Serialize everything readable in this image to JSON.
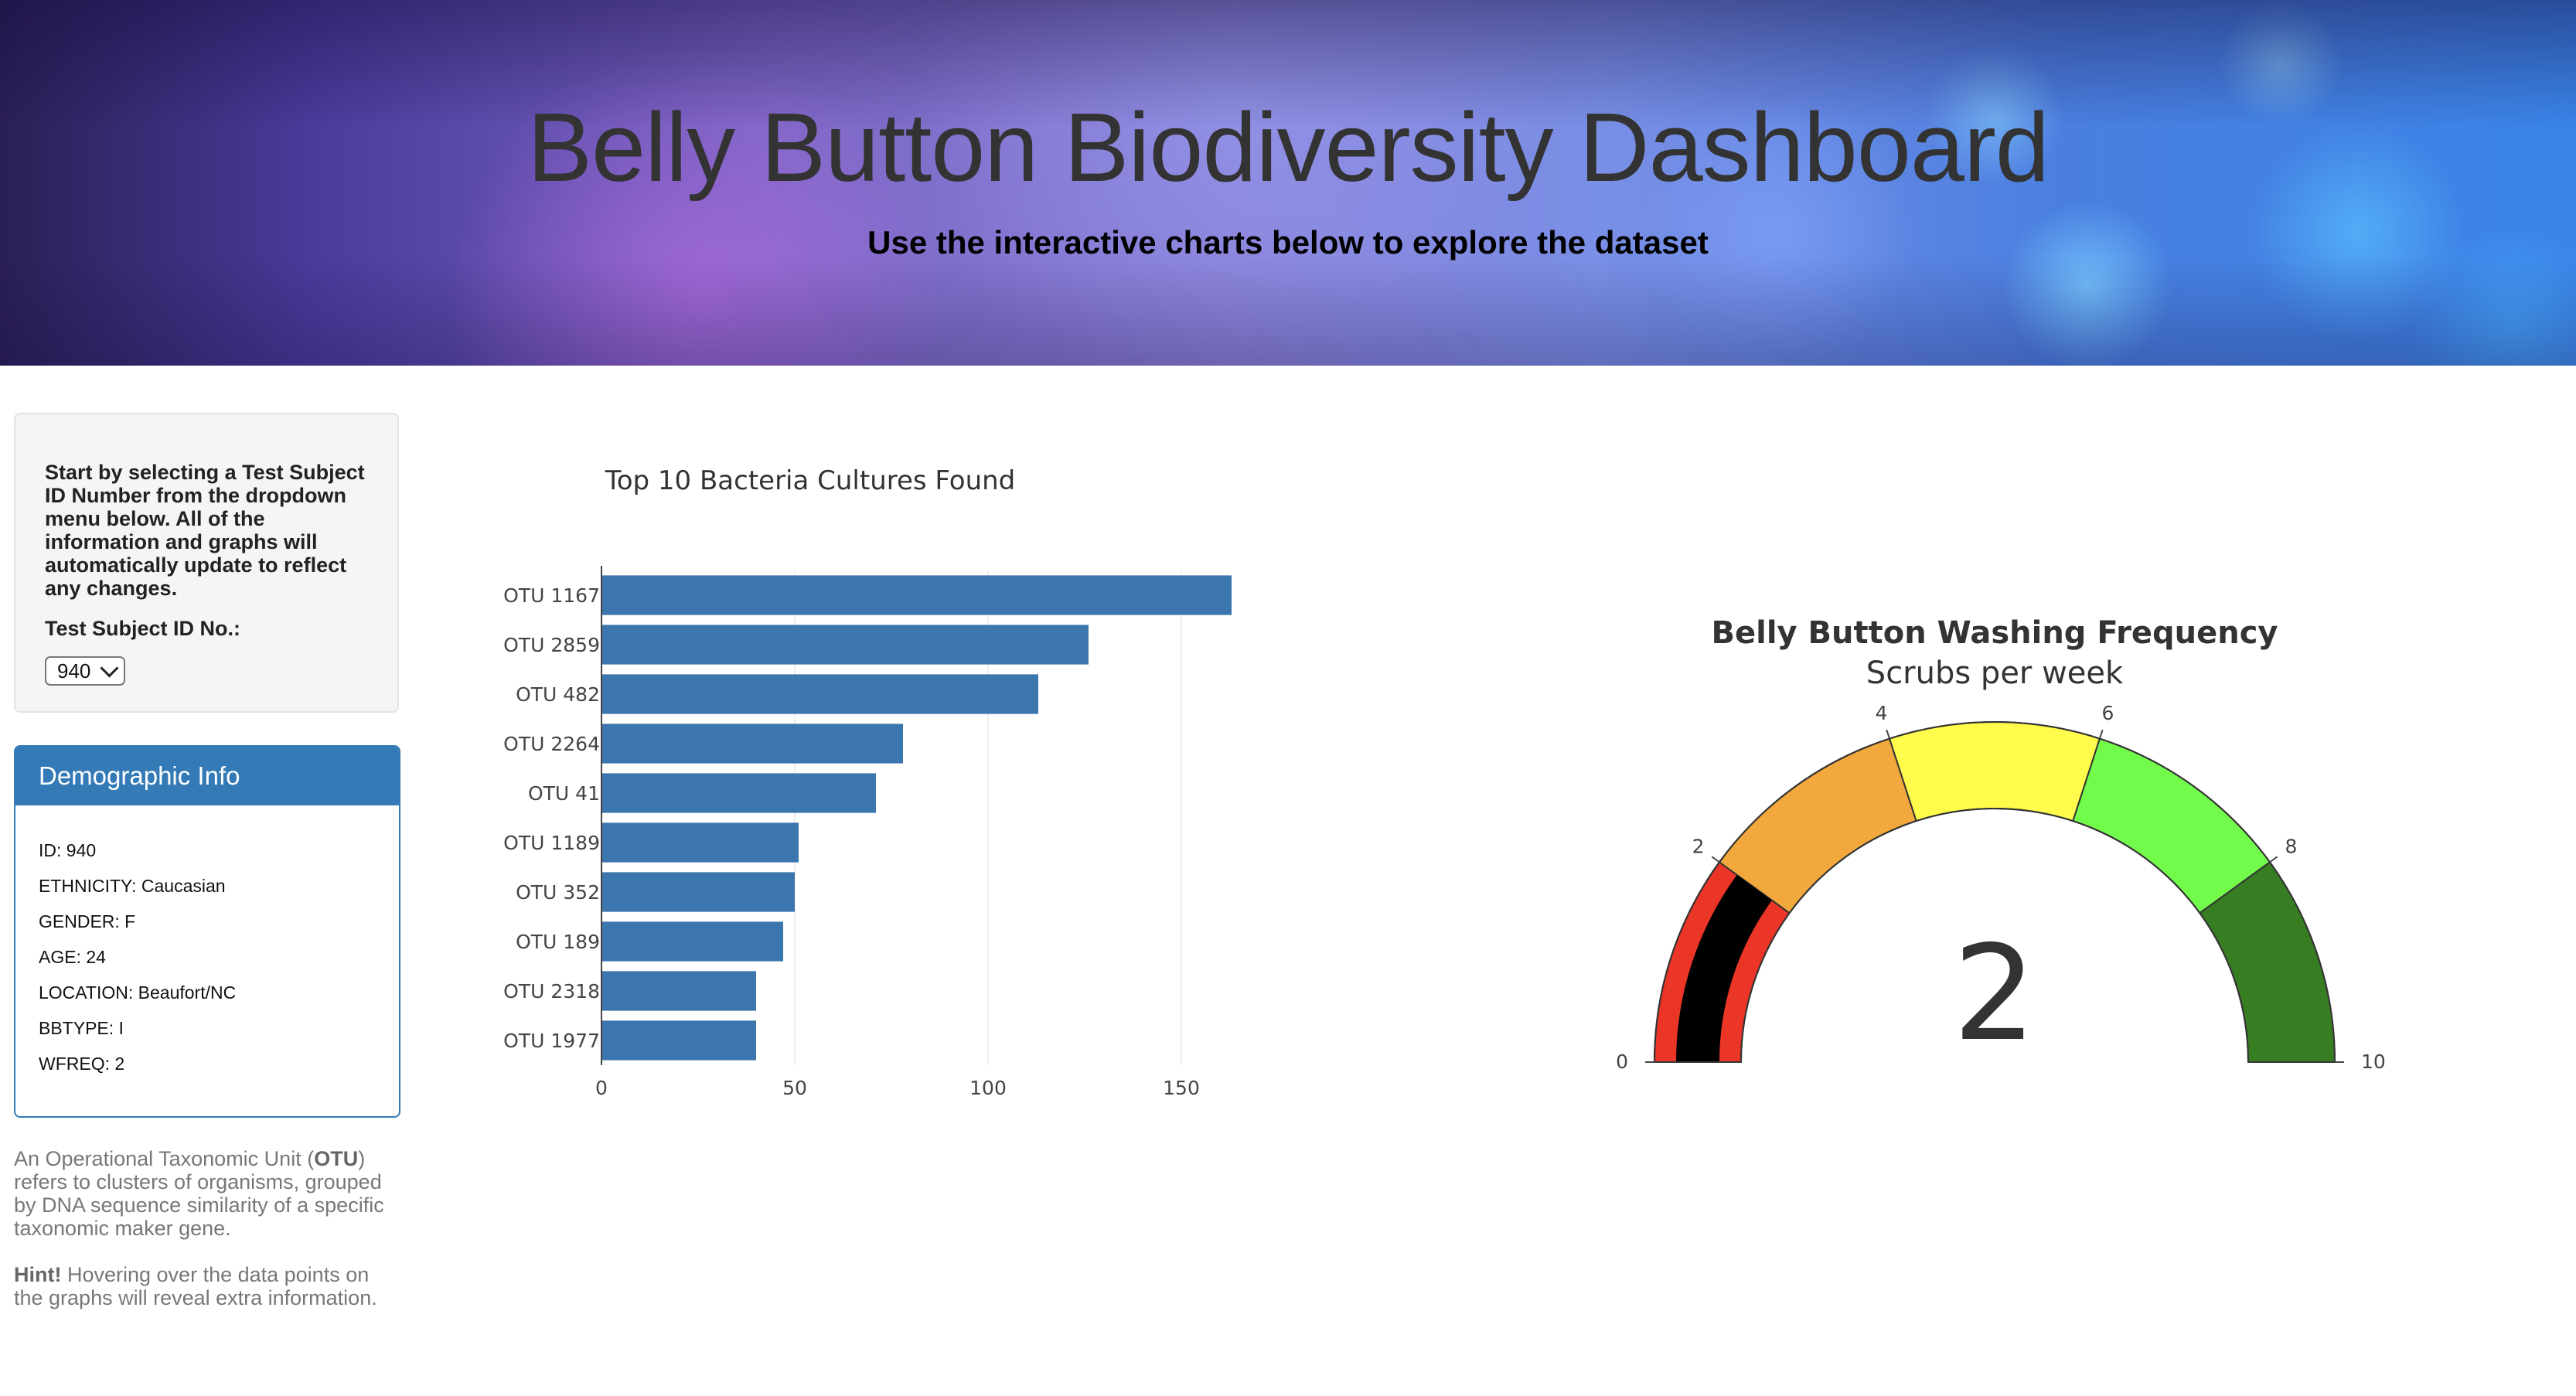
{
  "header": {
    "title": "Belly Button Biodiversity Dashboard",
    "subtitle": "Use the interactive charts below to explore the dataset"
  },
  "selector": {
    "instructions": "Start by selecting a Test Subject ID Number from the dropdown menu below. All of the information and graphs will automatically update to reflect any changes.",
    "label": "Test Subject ID No.:",
    "selected": "940"
  },
  "demographics": {
    "heading": "Demographic Info",
    "rows": [
      "ID: 940",
      "ETHNICITY: Caucasian",
      "GENDER: F",
      "AGE: 24",
      "LOCATION: Beaufort/NC",
      "BBTYPE: I",
      "WFREQ: 2"
    ]
  },
  "notes": {
    "otu_pre": "An Operational Taxonomic Unit (",
    "otu_bold": "OTU",
    "otu_post": ") refers to clusters of organisms, grouped by DNA sequence similarity of a specific taxonomic maker gene.",
    "hint_bold": "Hint!",
    "hint_text": " Hovering over the data points on the graphs will reveal extra information."
  },
  "chart_data": [
    {
      "type": "bar",
      "orientation": "horizontal",
      "title": "Top 10 Bacteria Cultures Found",
      "categories": [
        "OTU 1167",
        "OTU 2859",
        "OTU 482",
        "OTU 2264",
        "OTU 41",
        "OTU 1189",
        "OTU 352",
        "OTU 189",
        "OTU 2318",
        "OTU 1977"
      ],
      "values": [
        163,
        126,
        113,
        78,
        71,
        51,
        50,
        47,
        40,
        40
      ],
      "xlim": [
        0,
        165
      ],
      "xticks": [
        0,
        50,
        100,
        150
      ],
      "grid": true,
      "color": "#3b76af"
    },
    {
      "type": "gauge",
      "title": "Belly Button Washing Frequency",
      "subtitle": "Scrubs per week",
      "value": 2,
      "range": [
        0,
        10
      ],
      "ticks": [
        0,
        2,
        4,
        6,
        8,
        10
      ],
      "steps": [
        {
          "range": [
            0,
            2
          ],
          "color": "#ea3527"
        },
        {
          "range": [
            2,
            4
          ],
          "color": "#f2a83c"
        },
        {
          "range": [
            4,
            6
          ],
          "color": "#fffc4c"
        },
        {
          "range": [
            6,
            8
          ],
          "color": "#73fb4c"
        },
        {
          "range": [
            8,
            10
          ],
          "color": "#377e22"
        }
      ],
      "bar_color": "#000000"
    }
  ]
}
